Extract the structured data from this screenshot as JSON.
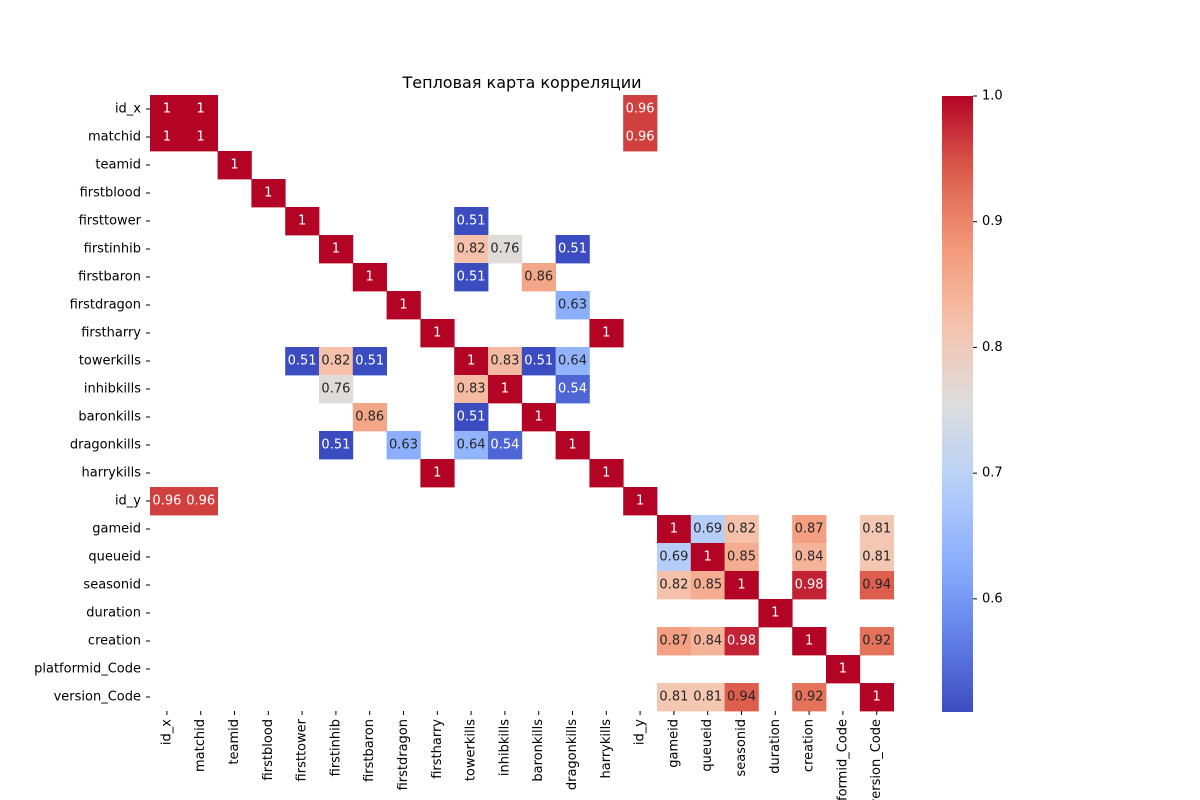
{
  "chart_data": {
    "type": "heatmap",
    "title": "Тепловая карта корреляции",
    "rows": [
      "id_x",
      "matchid",
      "teamid",
      "firstblood",
      "firsttower",
      "firstinhib",
      "firstbaron",
      "firstdragon",
      "firstharry",
      "towerkills",
      "inhibkills",
      "baronkills",
      "dragonkills",
      "harrykills",
      "id_y",
      "gameid",
      "queueid",
      "seasonid",
      "duration",
      "creation",
      "platformid_Code",
      "version_Code"
    ],
    "columns": [
      "id_x",
      "matchid",
      "teamid",
      "firstblood",
      "firsttower",
      "firstinhib",
      "firstbaron",
      "firstdragon",
      "firstharry",
      "towerkills",
      "inhibkills",
      "baronkills",
      "dragonkills",
      "harrykills",
      "id_y",
      "gameid",
      "queueid",
      "seasonid",
      "duration",
      "creation",
      "platformid_Code",
      "version_Code"
    ],
    "cells": [
      {
        "row": "id_x",
        "col": "id_x",
        "label": "1",
        "value": 1
      },
      {
        "row": "id_x",
        "col": "matchid",
        "label": "1",
        "value": 1
      },
      {
        "row": "id_x",
        "col": "id_y",
        "label": "0.96",
        "value": 0.96
      },
      {
        "row": "matchid",
        "col": "id_x",
        "label": "1",
        "value": 1
      },
      {
        "row": "matchid",
        "col": "matchid",
        "label": "1",
        "value": 1
      },
      {
        "row": "matchid",
        "col": "id_y",
        "label": "0.96",
        "value": 0.96
      },
      {
        "row": "teamid",
        "col": "teamid",
        "label": "1",
        "value": 1
      },
      {
        "row": "firstblood",
        "col": "firstblood",
        "label": "1",
        "value": 1
      },
      {
        "row": "firsttower",
        "col": "firsttower",
        "label": "1",
        "value": 1
      },
      {
        "row": "firsttower",
        "col": "towerkills",
        "label": "0.51",
        "value": 0.51
      },
      {
        "row": "firstinhib",
        "col": "firstinhib",
        "label": "1",
        "value": 1
      },
      {
        "row": "firstinhib",
        "col": "towerkills",
        "label": "0.82",
        "value": 0.82
      },
      {
        "row": "firstinhib",
        "col": "inhibkills",
        "label": "0.76",
        "value": 0.76
      },
      {
        "row": "firstinhib",
        "col": "dragonkills",
        "label": "0.51",
        "value": 0.51
      },
      {
        "row": "firstbaron",
        "col": "firstbaron",
        "label": "1",
        "value": 1
      },
      {
        "row": "firstbaron",
        "col": "towerkills",
        "label": "0.51",
        "value": 0.51
      },
      {
        "row": "firstbaron",
        "col": "baronkills",
        "label": "0.86",
        "value": 0.86
      },
      {
        "row": "firstdragon",
        "col": "firstdragon",
        "label": "1",
        "value": 1
      },
      {
        "row": "firstdragon",
        "col": "dragonkills",
        "label": "0.63",
        "value": 0.63
      },
      {
        "row": "firstharry",
        "col": "firstharry",
        "label": "1",
        "value": 1
      },
      {
        "row": "firstharry",
        "col": "harrykills",
        "label": "1",
        "value": 1
      },
      {
        "row": "towerkills",
        "col": "firsttower",
        "label": "0.51",
        "value": 0.51
      },
      {
        "row": "towerkills",
        "col": "firstinhib",
        "label": "0.82",
        "value": 0.82
      },
      {
        "row": "towerkills",
        "col": "firstbaron",
        "label": "0.51",
        "value": 0.51
      },
      {
        "row": "towerkills",
        "col": "towerkills",
        "label": "1",
        "value": 1
      },
      {
        "row": "towerkills",
        "col": "inhibkills",
        "label": "0.83",
        "value": 0.83
      },
      {
        "row": "towerkills",
        "col": "baronkills",
        "label": "0.51",
        "value": 0.51
      },
      {
        "row": "towerkills",
        "col": "dragonkills",
        "label": "0.64",
        "value": 0.64
      },
      {
        "row": "inhibkills",
        "col": "firstinhib",
        "label": "0.76",
        "value": 0.76
      },
      {
        "row": "inhibkills",
        "col": "towerkills",
        "label": "0.83",
        "value": 0.83
      },
      {
        "row": "inhibkills",
        "col": "inhibkills",
        "label": "1",
        "value": 1
      },
      {
        "row": "inhibkills",
        "col": "dragonkills",
        "label": "0.54",
        "value": 0.54
      },
      {
        "row": "baronkills",
        "col": "firstbaron",
        "label": "0.86",
        "value": 0.86
      },
      {
        "row": "baronkills",
        "col": "towerkills",
        "label": "0.51",
        "value": 0.51
      },
      {
        "row": "baronkills",
        "col": "baronkills",
        "label": "1",
        "value": 1
      },
      {
        "row": "dragonkills",
        "col": "firstinhib",
        "label": "0.51",
        "value": 0.51
      },
      {
        "row": "dragonkills",
        "col": "firstdragon",
        "label": "0.63",
        "value": 0.63
      },
      {
        "row": "dragonkills",
        "col": "towerkills",
        "label": "0.64",
        "value": 0.64
      },
      {
        "row": "dragonkills",
        "col": "inhibkills",
        "label": "0.54",
        "value": 0.54
      },
      {
        "row": "dragonkills",
        "col": "dragonkills",
        "label": "1",
        "value": 1
      },
      {
        "row": "harrykills",
        "col": "firstharry",
        "label": "1",
        "value": 1
      },
      {
        "row": "harrykills",
        "col": "harrykills",
        "label": "1",
        "value": 1
      },
      {
        "row": "id_y",
        "col": "id_x",
        "label": "0.96",
        "value": 0.96
      },
      {
        "row": "id_y",
        "col": "matchid",
        "label": "0.96",
        "value": 0.96
      },
      {
        "row": "id_y",
        "col": "id_y",
        "label": "1",
        "value": 1
      },
      {
        "row": "gameid",
        "col": "gameid",
        "label": "1",
        "value": 1
      },
      {
        "row": "gameid",
        "col": "queueid",
        "label": "0.69",
        "value": 0.69
      },
      {
        "row": "gameid",
        "col": "seasonid",
        "label": "0.82",
        "value": 0.82
      },
      {
        "row": "gameid",
        "col": "creation",
        "label": "0.87",
        "value": 0.87
      },
      {
        "row": "gameid",
        "col": "version_Code",
        "label": "0.81",
        "value": 0.81
      },
      {
        "row": "queueid",
        "col": "gameid",
        "label": "0.69",
        "value": 0.69
      },
      {
        "row": "queueid",
        "col": "queueid",
        "label": "1",
        "value": 1
      },
      {
        "row": "queueid",
        "col": "seasonid",
        "label": "0.85",
        "value": 0.85
      },
      {
        "row": "queueid",
        "col": "creation",
        "label": "0.84",
        "value": 0.84
      },
      {
        "row": "queueid",
        "col": "version_Code",
        "label": "0.81",
        "value": 0.81
      },
      {
        "row": "seasonid",
        "col": "gameid",
        "label": "0.82",
        "value": 0.82
      },
      {
        "row": "seasonid",
        "col": "queueid",
        "label": "0.85",
        "value": 0.85
      },
      {
        "row": "seasonid",
        "col": "seasonid",
        "label": "1",
        "value": 1
      },
      {
        "row": "seasonid",
        "col": "creation",
        "label": "0.98",
        "value": 0.98
      },
      {
        "row": "seasonid",
        "col": "version_Code",
        "label": "0.94",
        "value": 0.94
      },
      {
        "row": "duration",
        "col": "duration",
        "label": "1",
        "value": 1
      },
      {
        "row": "creation",
        "col": "gameid",
        "label": "0.87",
        "value": 0.87
      },
      {
        "row": "creation",
        "col": "queueid",
        "label": "0.84",
        "value": 0.84
      },
      {
        "row": "creation",
        "col": "seasonid",
        "label": "0.98",
        "value": 0.98
      },
      {
        "row": "creation",
        "col": "creation",
        "label": "1",
        "value": 1
      },
      {
        "row": "creation",
        "col": "version_Code",
        "label": "0.92",
        "value": 0.92
      },
      {
        "row": "platformid_Code",
        "col": "platformid_Code",
        "label": "1",
        "value": 1
      },
      {
        "row": "version_Code",
        "col": "gameid",
        "label": "0.81",
        "value": 0.81
      },
      {
        "row": "version_Code",
        "col": "queueid",
        "label": "0.81",
        "value": 0.81
      },
      {
        "row": "version_Code",
        "col": "seasonid",
        "label": "0.94",
        "value": 0.94
      },
      {
        "row": "version_Code",
        "col": "creation",
        "label": "0.92",
        "value": 0.92
      },
      {
        "row": "version_Code",
        "col": "version_Code",
        "label": "1",
        "value": 1
      }
    ],
    "colorbar": {
      "colormap": "coolwarm",
      "vmin": 0.51,
      "vmax": 1.0,
      "ticks": [
        0.6,
        0.7,
        0.8,
        0.9,
        1.0
      ],
      "tick_labels": [
        "0.6",
        "0.7",
        "0.8",
        "0.9",
        "1.0"
      ]
    },
    "grid": false
  }
}
